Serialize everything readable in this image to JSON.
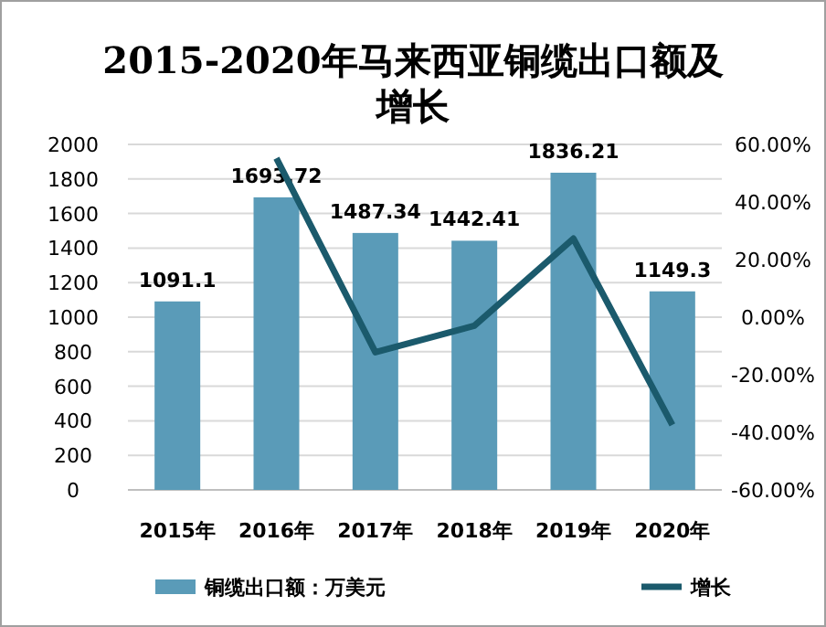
{
  "chart_data": {
    "type": "bar",
    "title": "2015-2020年马来西亚铜缆出口额及增长",
    "categories": [
      "2015年",
      "2016年",
      "2017年",
      "2018年",
      "2019年",
      "2020年"
    ],
    "series": [
      {
        "name": "铜缆出口额：万美元",
        "color": "#5a9bb8",
        "values": [
          1091.1,
          1693.72,
          1487.34,
          1442.41,
          1836.21,
          1149.3
        ],
        "data_labels": true
      },
      {
        "name": "增长",
        "type": "line",
        "axis": "y2",
        "color": "#1b5a6c",
        "values": [
          null,
          55.2,
          -12.2,
          -3.0,
          27.3,
          -37.4
        ]
      }
    ],
    "ylim": [
      0,
      2000
    ],
    "yticks": [
      0,
      200,
      400,
      600,
      800,
      1000,
      1200,
      1400,
      1600,
      1800,
      2000
    ],
    "y2lim": [
      -60,
      60
    ],
    "y2ticks": [
      {
        "value": -60,
        "label": "-60.00%"
      },
      {
        "value": -40,
        "label": "-40.00%"
      },
      {
        "value": -20,
        "label": "-20.00%"
      },
      {
        "value": 0,
        "label": "0.00%"
      },
      {
        "value": 20,
        "label": "20.00%"
      },
      {
        "value": 40,
        "label": "40.00%"
      },
      {
        "value": 60,
        "label": "60.00%"
      }
    ],
    "grid": "y",
    "legend": "bottom"
  }
}
